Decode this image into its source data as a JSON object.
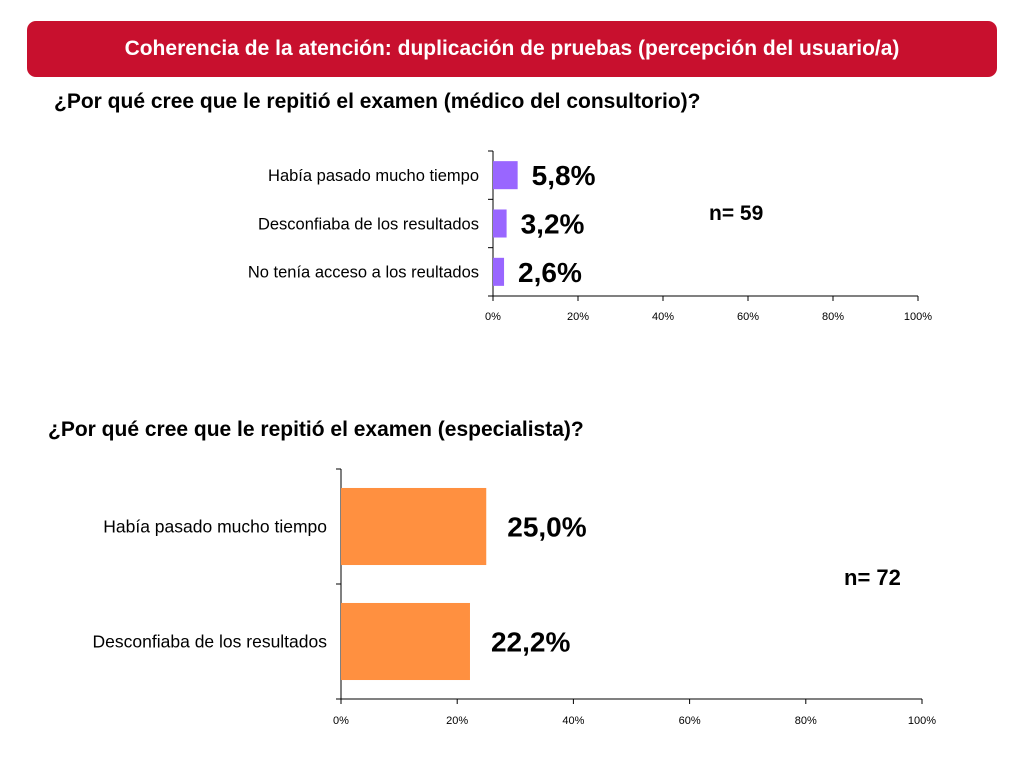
{
  "header": {
    "title": "Coherencia de la atención: duplicación de pruebas (percepción del usuario/a)"
  },
  "colors": {
    "banner": "#c8102e",
    "series1": "#9966ff",
    "series2": "#ff9040",
    "axis": "#000000"
  },
  "chart_data": [
    {
      "type": "bar",
      "orientation": "horizontal",
      "title": "¿Por qué cree que le repitió el examen (médico del consultorio)?",
      "categories": [
        "Había pasado mucho tiempo",
        "Desconfiaba de los resultados",
        "No tenía acceso a los reultados"
      ],
      "values": [
        5.8,
        3.2,
        2.6
      ],
      "value_labels": [
        "5,8%",
        "3,2%",
        "2,6%"
      ],
      "xlim": [
        0,
        100
      ],
      "x_ticks": [
        "0%",
        "20%",
        "40%",
        "60%",
        "80%",
        "100%"
      ],
      "annotation": "n= 59",
      "grid": false
    },
    {
      "type": "bar",
      "orientation": "horizontal",
      "title": "¿Por qué cree que le repitió el examen (especialista)?",
      "categories": [
        "Había pasado mucho tiempo",
        "Desconfiaba de los resultados"
      ],
      "values": [
        25.0,
        22.2
      ],
      "value_labels": [
        "25,0%",
        "22,2%"
      ],
      "xlim": [
        0,
        100
      ],
      "x_ticks": [
        "0%",
        "20%",
        "40%",
        "60%",
        "80%",
        "100%"
      ],
      "annotation": "n= 72",
      "grid": false
    }
  ]
}
